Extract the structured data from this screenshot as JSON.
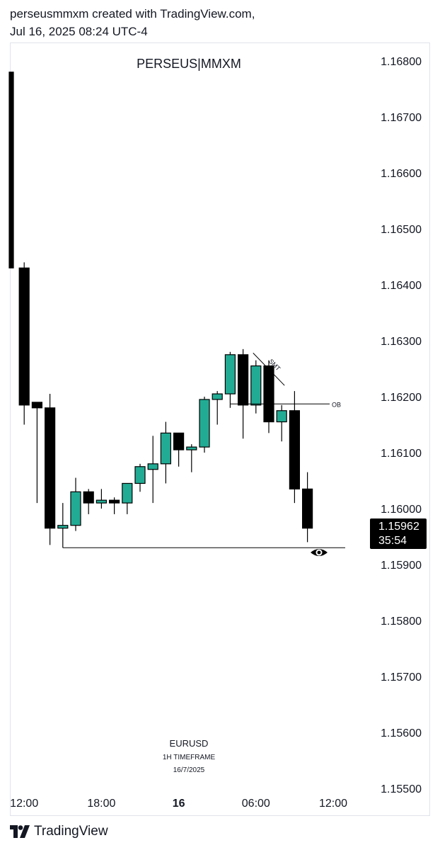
{
  "header": {
    "line1": "perseusmmxm created with TradingView.com,",
    "line2": "Jul 16, 2025 08:24 UTC-4"
  },
  "watermark": {
    "title": "PERSEUS|MMXM",
    "symbol": "EURUSD",
    "timeframe": "1H TIMEFRAME",
    "date": "16/7/2025"
  },
  "footer": {
    "brand": "TradingView"
  },
  "price_badge": {
    "price": "1.15962",
    "countdown": "35:54"
  },
  "colors": {
    "up": "#22ab94",
    "down": "#000000",
    "line": "#000000",
    "text": "#131722"
  },
  "chart_data": {
    "type": "candlestick",
    "symbol": "EURUSD",
    "timeframe": "1H",
    "y_axis": {
      "range": [
        1.155,
        1.168
      ],
      "ticks": [
        "1.16800",
        "1.16700",
        "1.16600",
        "1.16500",
        "1.16400",
        "1.16300",
        "1.16200",
        "1.16100",
        "1.16000",
        "1.15900",
        "1.15800",
        "1.15700",
        "1.15600",
        "1.15500"
      ]
    },
    "x_axis": {
      "ticks": [
        {
          "label": "12:00",
          "bar": 1
        },
        {
          "label": "18:00",
          "bar": 7
        },
        {
          "label": "16",
          "bar": 13,
          "bold": true
        },
        {
          "label": "06:00",
          "bar": 19
        },
        {
          "label": "12:00",
          "bar": 25
        }
      ]
    },
    "candles": [
      {
        "o": 1.1678,
        "h": 1.1678,
        "l": 1.1643,
        "c": 1.1643
      },
      {
        "o": 1.1643,
        "h": 1.1644,
        "l": 1.1615,
        "c": 1.16185
      },
      {
        "o": 1.1619,
        "h": 1.1619,
        "l": 1.1601,
        "c": 1.1618
      },
      {
        "o": 1.1618,
        "h": 1.16205,
        "l": 1.15935,
        "c": 1.15965
      },
      {
        "o": 1.15965,
        "h": 1.1601,
        "l": 1.1593,
        "c": 1.1597
      },
      {
        "o": 1.1597,
        "h": 1.16055,
        "l": 1.1596,
        "c": 1.1603
      },
      {
        "o": 1.1603,
        "h": 1.16035,
        "l": 1.1599,
        "c": 1.1601
      },
      {
        "o": 1.1601,
        "h": 1.16035,
        "l": 1.16,
        "c": 1.16015
      },
      {
        "o": 1.16015,
        "h": 1.1602,
        "l": 1.1599,
        "c": 1.1601
      },
      {
        "o": 1.1601,
        "h": 1.16045,
        "l": 1.1599,
        "c": 1.16045
      },
      {
        "o": 1.16045,
        "h": 1.1608,
        "l": 1.1603,
        "c": 1.16075
      },
      {
        "o": 1.1607,
        "h": 1.1613,
        "l": 1.1601,
        "c": 1.1608
      },
      {
        "o": 1.1608,
        "h": 1.16155,
        "l": 1.16045,
        "c": 1.16135
      },
      {
        "o": 1.16135,
        "h": 1.16135,
        "l": 1.16075,
        "c": 1.16105
      },
      {
        "o": 1.16105,
        "h": 1.16115,
        "l": 1.16065,
        "c": 1.1611
      },
      {
        "o": 1.1611,
        "h": 1.162,
        "l": 1.161,
        "c": 1.16195
      },
      {
        "o": 1.16195,
        "h": 1.1621,
        "l": 1.1615,
        "c": 1.16205
      },
      {
        "o": 1.16205,
        "h": 1.1628,
        "l": 1.1618,
        "c": 1.16275
      },
      {
        "o": 1.16275,
        "h": 1.16285,
        "l": 1.16125,
        "c": 1.16185
      },
      {
        "o": 1.16185,
        "h": 1.16265,
        "l": 1.1617,
        "c": 1.16255
      },
      {
        "o": 1.16255,
        "h": 1.16265,
        "l": 1.16135,
        "c": 1.16155
      },
      {
        "o": 1.16155,
        "h": 1.16185,
        "l": 1.1612,
        "c": 1.16175
      },
      {
        "o": 1.16175,
        "h": 1.1621,
        "l": 1.1601,
        "c": 1.16035
      },
      {
        "o": 1.16035,
        "h": 1.16065,
        "l": 1.1594,
        "c": 1.15965
      }
    ],
    "annotations": [
      {
        "type": "hline",
        "label": "OB",
        "price": 1.16187,
        "from_bar": 17
      },
      {
        "type": "hline",
        "label": "",
        "price": 1.1593,
        "from_bar": 4
      },
      {
        "type": "trendline",
        "label": "SMT",
        "from": {
          "bar": 19,
          "price": 1.16278
        },
        "to": {
          "bar": 21,
          "price": 1.1622
        }
      }
    ]
  }
}
